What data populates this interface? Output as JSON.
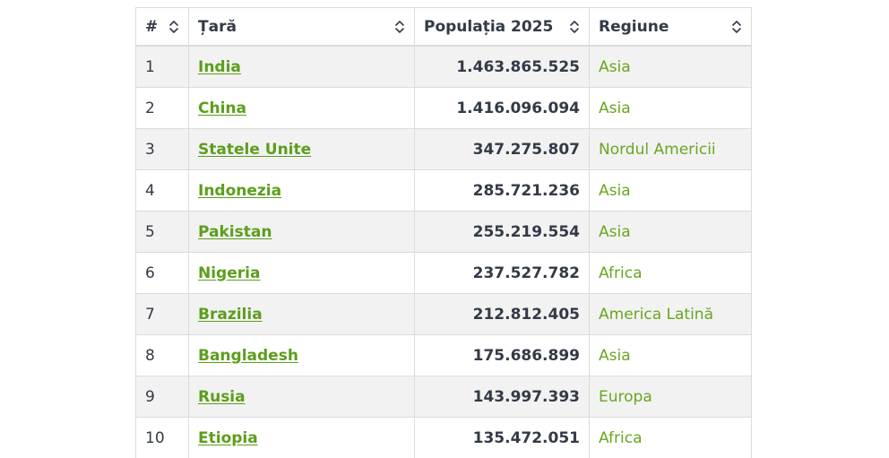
{
  "table": {
    "headers": {
      "rank": "#",
      "country": "Țară",
      "population": "Populația 2025",
      "region": "Regiune"
    },
    "rows": [
      {
        "rank": "1",
        "country": "India",
        "population": "1.463.865.525",
        "region": "Asia"
      },
      {
        "rank": "2",
        "country": "China",
        "population": "1.416.096.094",
        "region": "Asia"
      },
      {
        "rank": "3",
        "country": "Statele Unite",
        "population": "347.275.807",
        "region": "Nordul Americii"
      },
      {
        "rank": "4",
        "country": "Indonezia",
        "population": "285.721.236",
        "region": "Asia"
      },
      {
        "rank": "5",
        "country": "Pakistan",
        "population": "255.219.554",
        "region": "Asia"
      },
      {
        "rank": "6",
        "country": "Nigeria",
        "population": "237.527.782",
        "region": "Africa"
      },
      {
        "rank": "7",
        "country": "Brazilia",
        "population": "212.812.405",
        "region": "America Latină"
      },
      {
        "rank": "8",
        "country": "Bangladesh",
        "population": "175.686.899",
        "region": "Asia"
      },
      {
        "rank": "9",
        "country": "Rusia",
        "population": "143.997.393",
        "region": "Europa"
      },
      {
        "rank": "10",
        "country": "Etiopia",
        "population": "135.472.051",
        "region": "Africa"
      }
    ]
  },
  "icons": {
    "sort": "sort-updown-icon"
  },
  "colors": {
    "link": "#5c9e1c",
    "region": "#6aa620",
    "text": "#333a47",
    "stripe": "#f2f2f2",
    "border": "#dcdcdc"
  }
}
